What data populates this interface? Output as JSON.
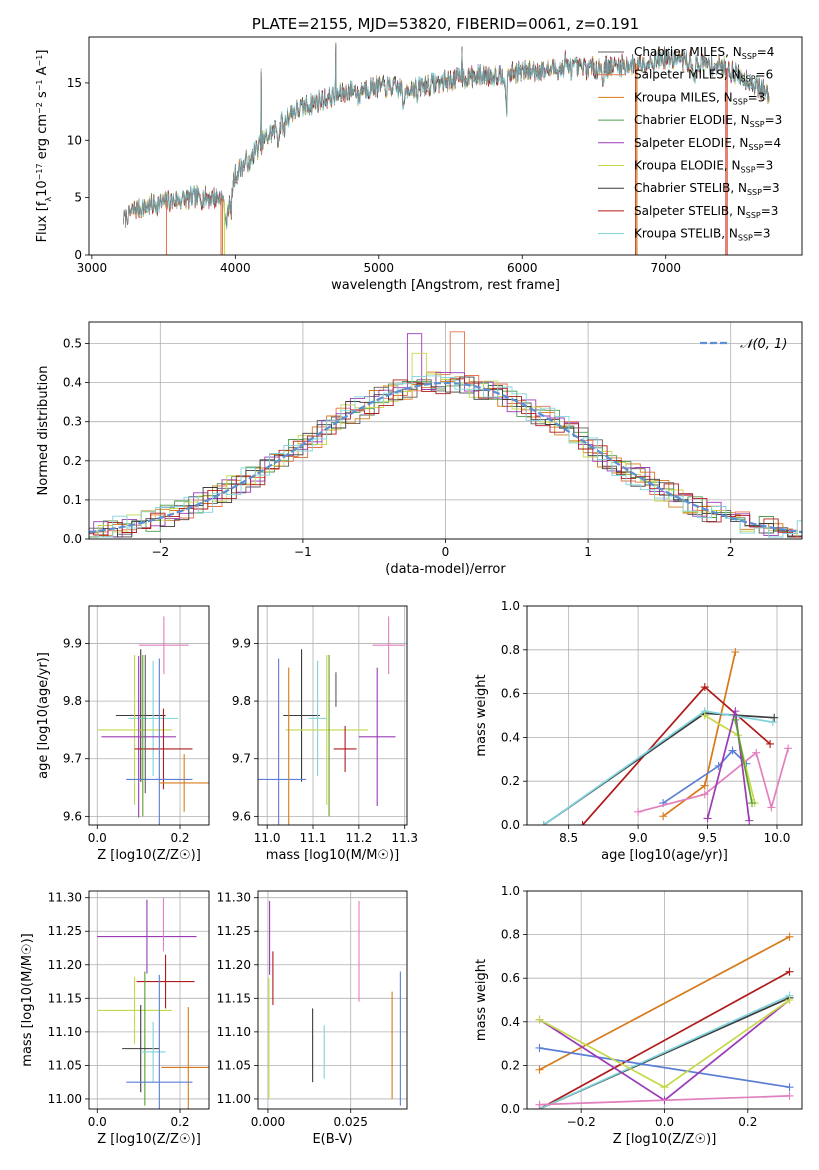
{
  "colors": {
    "chabrier_miles": "#5e5e5e",
    "salpeter_miles": "#e8724a",
    "kroupa_miles": "#d77a1b",
    "chabrier_elodie": "#4f9a4f",
    "salpeter_elodie": "#9a3bb5",
    "kroupa_elodie": "#c6d84a",
    "chabrier_stelib": "#3c3c3c",
    "salpeter_stelib": "#b01b1b",
    "kroupa_stelib": "#7fd3dc",
    "normal": "#5b8fd6",
    "extra_blue": "#5b7fd6",
    "extra_pink": "#e27fbf",
    "extra_green": "#5aa02c"
  },
  "chart_data": [
    {
      "id": "spectrum",
      "type": "line",
      "title": "PLATE=2155, MJD=53820, FIBERID=0061, z=0.191",
      "xlabel": "wavelength [Angstrom, rest frame]",
      "ylabel_html": "Flux [f<tspan baseline-shift='sub' font-size='8'>λ</tspan>10<tspan baseline-shift='super' font-size='8'>−17</tspan> erg cm<tspan baseline-shift='super' font-size='8'>−2</tspan> s<tspan baseline-shift='super' font-size='8'>−1</tspan> A<tspan baseline-shift='super' font-size='8'>−1</tspan>]",
      "xlim": [
        2980,
        7950
      ],
      "ylim": [
        0,
        19
      ],
      "xticks": [
        3000,
        4000,
        5000,
        6000,
        7000
      ],
      "yticks": [
        0,
        5,
        10,
        15
      ],
      "grid": false,
      "legend_position": "top-right",
      "legend": [
        {
          "key": "chabrier_miles",
          "label": "Chabrier MILES, N",
          "sub": "SSP",
          "suffix": "=4"
        },
        {
          "key": "salpeter_miles",
          "label": "Salpeter MILES, N",
          "sub": "SSP",
          "suffix": "=6"
        },
        {
          "key": "kroupa_miles",
          "label": "Kroupa MILES, N",
          "sub": "SSP",
          "suffix": "=3"
        },
        {
          "key": "chabrier_elodie",
          "label": "Chabrier ELODIE, N",
          "sub": "SSP",
          "suffix": "=3"
        },
        {
          "key": "salpeter_elodie",
          "label": "Salpeter ELODIE, N",
          "sub": "SSP",
          "suffix": "=4"
        },
        {
          "key": "kroupa_elodie",
          "label": "Kroupa ELODIE, N",
          "sub": "SSP",
          "suffix": "=3"
        },
        {
          "key": "chabrier_stelib",
          "label": "Chabrier STELIB, N",
          "sub": "SSP",
          "suffix": "=3"
        },
        {
          "key": "salpeter_stelib",
          "label": "Salpeter STELIB, N",
          "sub": "SSP",
          "suffix": "=3"
        },
        {
          "key": "kroupa_stelib",
          "label": "Kroupa STELIB, N",
          "sub": "SSP",
          "suffix": "=3"
        }
      ],
      "continuum": [
        [
          3220,
          3.2
        ],
        [
          3300,
          4.0
        ],
        [
          3500,
          4.6
        ],
        [
          3700,
          5.0
        ],
        [
          3900,
          5.0
        ],
        [
          3950,
          4.2
        ],
        [
          4000,
          7.0
        ],
        [
          4200,
          10.0
        ],
        [
          4400,
          12.5
        ],
        [
          4600,
          13.5
        ],
        [
          4800,
          14.3
        ],
        [
          5000,
          14.7
        ],
        [
          5200,
          14.5
        ],
        [
          5400,
          15.0
        ],
        [
          5600,
          15.5
        ],
        [
          5800,
          15.7
        ],
        [
          6000,
          16.0
        ],
        [
          6200,
          16.2
        ],
        [
          6400,
          16.3
        ],
        [
          6600,
          16.4
        ],
        [
          6800,
          16.6
        ],
        [
          7000,
          17.2
        ],
        [
          7200,
          16.8
        ],
        [
          7400,
          16.4
        ],
        [
          7600,
          15.0
        ],
        [
          7720,
          14.0
        ]
      ],
      "absorption": [
        [
          3934,
          2.0
        ],
        [
          3969,
          1.5
        ],
        [
          4102,
          1.2
        ],
        [
          4300,
          1.3
        ],
        [
          4340,
          1.0
        ],
        [
          4861,
          1.0
        ],
        [
          5175,
          2.0
        ],
        [
          5270,
          1.0
        ],
        [
          5890,
          3.0
        ],
        [
          6563,
          1.0
        ],
        [
          7200,
          2.0
        ]
      ],
      "spikes": [
        [
          4180,
          16.0
        ],
        [
          4700,
          18.3
        ],
        [
          5580,
          17.9
        ],
        [
          6300,
          17.6
        ]
      ],
      "dropouts": [
        {
          "key": "salpeter_miles",
          "x": 3520
        },
        {
          "key": "salpeter_miles",
          "x": 3900
        },
        {
          "key": "kroupa_miles",
          "x": 3910
        },
        {
          "key": "kroupa_elodie",
          "x": 3925
        },
        {
          "key": "salpeter_stelib",
          "x": 6790
        },
        {
          "key": "kroupa_elodie",
          "x": 6795
        },
        {
          "key": "salpeter_miles",
          "x": 6800
        },
        {
          "key": "salpeter_stelib",
          "x": 7420
        },
        {
          "key": "salpeter_miles",
          "x": 7430
        }
      ]
    },
    {
      "id": "residuals",
      "type": "bar",
      "xlabel": "(data-model)/error",
      "ylabel": "Normed distribution",
      "xlim": [
        -2.5,
        2.5
      ],
      "ylim": [
        0,
        0.555
      ],
      "xticks": [
        -2,
        -1,
        0,
        1,
        2
      ],
      "xticklabels": [
        "−2",
        "−1",
        "0",
        "1",
        "2"
      ],
      "yticks": [
        0,
        0.1,
        0.2,
        0.3,
        0.4,
        0.5
      ],
      "yticklabels": [
        "0.0",
        "0.1",
        "0.2",
        "0.3",
        "0.4",
        "0.5"
      ],
      "grid": true,
      "bin_width": 0.1,
      "normal_label": "𝒩(0, 1)",
      "legend_position": "top-right",
      "peak_bins": [
        {
          "key": "salpeter_elodie",
          "x": -0.3,
          "value": 0.525
        },
        {
          "key": "salpeter_miles",
          "x": 0.0,
          "value": 0.53
        },
        {
          "key": "kroupa_elodie",
          "x": -0.25,
          "value": 0.475
        }
      ]
    },
    {
      "id": "z-age",
      "type": "scatter",
      "xlabel": "Z [log10(Z/Z☉)]",
      "ylabel": "age [log10(age/yr)]",
      "xlim": [
        -0.02,
        0.27
      ],
      "ylim": [
        9.585,
        9.965
      ],
      "xticks": [
        0.0,
        0.2
      ],
      "xticklabels": [
        "0.0",
        "0.2"
      ],
      "yticks": [
        9.6,
        9.7,
        9.8,
        9.9
      ],
      "grid": true,
      "points": [
        {
          "key": "extra_pink",
          "x": 0.161,
          "y": 9.897,
          "xerr": 0.06,
          "yerr": 0.05
        },
        {
          "key": "chabrier_stelib",
          "x": 0.105,
          "y": 9.775,
          "xerr": 0.06,
          "yerr": 0.115
        },
        {
          "key": "kroupa_stelib",
          "x": 0.135,
          "y": 9.77,
          "xerr": 0.06,
          "yerr": 0.1
        },
        {
          "key": "kroupa_elodie",
          "x": 0.09,
          "y": 9.75,
          "xerr": 0.09,
          "yerr": 0.13
        },
        {
          "key": "salpeter_elodie",
          "x": 0.1,
          "y": 9.738,
          "xerr": 0.09,
          "yerr": 0.14
        },
        {
          "key": "salpeter_stelib",
          "x": 0.16,
          "y": 9.717,
          "xerr": 0.07,
          "yerr": 0.07
        },
        {
          "key": "extra_blue",
          "x": 0.15,
          "y": 9.664,
          "xerr": 0.08,
          "yerr": 0.21
        },
        {
          "key": "kroupa_miles",
          "x": 0.21,
          "y": 9.658,
          "xerr": 0.06,
          "yerr": 0.05
        },
        {
          "key": "extra_green",
          "x": 0.11,
          "y": 9.74,
          "xerr": 0.0,
          "yerr": 0.14
        },
        {
          "key": "chabrier_miles",
          "x": 0.116,
          "y": 9.76,
          "xerr": 0.0,
          "yerr": 0.12
        }
      ]
    },
    {
      "id": "mass-age",
      "type": "scatter",
      "xlabel": "mass [log10(M/M☉)]",
      "xlim": [
        10.98,
        11.305
      ],
      "ylim": [
        9.585,
        9.965
      ],
      "xticks": [
        11.0,
        11.1,
        11.2,
        11.3
      ],
      "xticklabels": [
        "11.0",
        "11.1",
        "11.2",
        "11.3"
      ],
      "yticks": [
        9.6,
        9.7,
        9.8,
        9.9
      ],
      "grid": true,
      "points": [
        {
          "key": "extra_pink",
          "x": 11.265,
          "y": 9.897,
          "xerr": 0.035,
          "yerr": 0.05
        },
        {
          "key": "chabrier_stelib",
          "x": 11.075,
          "y": 9.775,
          "xerr": 0.04,
          "yerr": 0.115
        },
        {
          "key": "kroupa_stelib",
          "x": 11.11,
          "y": 9.77,
          "xerr": 0.02,
          "yerr": 0.1
        },
        {
          "key": "kroupa_elodie",
          "x": 11.13,
          "y": 9.75,
          "xerr": 0.09,
          "yerr": 0.13
        },
        {
          "key": "salpeter_elodie",
          "x": 11.24,
          "y": 9.738,
          "xerr": 0.04,
          "yerr": 0.12
        },
        {
          "key": "salpeter_stelib",
          "x": 11.17,
          "y": 9.717,
          "xerr": 0.025,
          "yerr": 0.04
        },
        {
          "key": "extra_blue",
          "x": 11.025,
          "y": 9.664,
          "xerr": 0.06,
          "yerr": 0.21
        },
        {
          "key": "kroupa_miles",
          "x": 11.047,
          "y": 9.658,
          "xerr": 0.0,
          "yerr": 0.2
        },
        {
          "key": "extra_green",
          "x": 11.135,
          "y": 9.74,
          "xerr": 0.0,
          "yerr": 0.14
        },
        {
          "key": "chabrier_miles",
          "x": 11.15,
          "y": 9.82,
          "xerr": 0.0,
          "yerr": 0.03
        }
      ]
    },
    {
      "id": "age-weight",
      "type": "line",
      "xlabel": "age [log10(age/yr)]",
      "ylabel": "mass weight",
      "xlim": [
        8.2,
        10.18
      ],
      "ylim": [
        0,
        1.0
      ],
      "xticks": [
        8.5,
        9.0,
        9.5,
        10.0
      ],
      "xticklabels": [
        "8.5",
        "9.0",
        "9.5",
        "10.0"
      ],
      "yticks": [
        0.0,
        0.2,
        0.4,
        0.6,
        0.8,
        1.0
      ],
      "yticklabels": [
        "0.0",
        "0.2",
        "0.4",
        "0.6",
        "0.8",
        "1.0"
      ],
      "grid": true,
      "series": [
        {
          "key": "kroupa_miles",
          "x": [
            9.18,
            9.48,
            9.7
          ],
          "y": [
            0.04,
            0.18,
            0.79
          ]
        },
        {
          "key": "salpeter_stelib",
          "x": [
            8.6,
            9.48,
            9.95
          ],
          "y": [
            0.0,
            0.63,
            0.37
          ]
        },
        {
          "key": "chabrier_stelib",
          "x": [
            8.32,
            9.48,
            9.98
          ],
          "y": [
            0.0,
            0.51,
            0.49
          ]
        },
        {
          "key": "kroupa_stelib",
          "x": [
            8.32,
            9.48,
            9.97
          ],
          "y": [
            0.0,
            0.52,
            0.47
          ]
        },
        {
          "key": "extra_blue",
          "x": [
            9.18,
            9.58,
            9.68,
            9.78
          ],
          "y": [
            0.1,
            0.27,
            0.34,
            0.28
          ]
        },
        {
          "key": "extra_pink",
          "x": [
            9.0,
            9.48,
            9.85,
            9.96,
            10.08
          ],
          "y": [
            0.06,
            0.14,
            0.33,
            0.08,
            0.35
          ]
        },
        {
          "key": "kroupa_elodie",
          "x": [
            9.48,
            9.72,
            9.84
          ],
          "y": [
            0.5,
            0.41,
            0.1
          ]
        },
        {
          "key": "salpeter_elodie",
          "x": [
            9.5,
            9.7,
            9.8
          ],
          "y": [
            0.03,
            0.52,
            0.02
          ]
        },
        {
          "key": "extra_green",
          "x": [
            9.7,
            9.82
          ],
          "y": [
            0.48,
            0.1
          ]
        }
      ]
    },
    {
      "id": "z-mass",
      "type": "scatter",
      "xlabel": "Z [log10(Z/Z☉)]",
      "ylabel": "mass [log10(M/M☉)]",
      "xlim": [
        -0.02,
        0.27
      ],
      "ylim": [
        10.985,
        11.31
      ],
      "xticks": [
        0.0,
        0.2
      ],
      "xticklabels": [
        "0.0",
        "0.2"
      ],
      "yticks": [
        11.0,
        11.05,
        11.1,
        11.15,
        11.2,
        11.25,
        11.3
      ],
      "yticklabels": [
        "11.00",
        "11.05",
        "11.10",
        "11.15",
        "11.20",
        "11.25",
        "11.30"
      ],
      "grid": true,
      "points": [
        {
          "key": "salpeter_elodie",
          "x": 0.12,
          "y": 11.242,
          "xerr": 0.12,
          "yerr": 0.055
        },
        {
          "key": "extra_pink",
          "x": 0.16,
          "y": 11.26,
          "xerr": 0.0,
          "yerr": 0.04
        },
        {
          "key": "salpeter_stelib",
          "x": 0.165,
          "y": 11.175,
          "xerr": 0.07,
          "yerr": 0.04
        },
        {
          "key": "kroupa_elodie",
          "x": 0.09,
          "y": 11.132,
          "xerr": 0.09,
          "yerr": 0.05
        },
        {
          "key": "extra_green",
          "x": 0.115,
          "y": 11.09,
          "xerr": 0.0,
          "yerr": 0.1
        },
        {
          "key": "chabrier_stelib",
          "x": 0.105,
          "y": 11.075,
          "xerr": 0.045,
          "yerr": 0.065
        },
        {
          "key": "kroupa_stelib",
          "x": 0.135,
          "y": 11.07,
          "xerr": 0.03,
          "yerr": 0.045
        },
        {
          "key": "kroupa_miles",
          "x": 0.22,
          "y": 11.047,
          "xerr": 0.065,
          "yerr": 0.09
        },
        {
          "key": "extra_blue",
          "x": 0.15,
          "y": 11.025,
          "xerr": 0.08,
          "yerr": 0.16
        }
      ]
    },
    {
      "id": "ebv-mass",
      "type": "scatter",
      "xlabel": "E(B-V)",
      "xlim": [
        -0.003,
        0.042
      ],
      "ylim": [
        10.985,
        11.31
      ],
      "xticks": [
        0.0,
        0.025
      ],
      "xticklabels": [
        "0.000",
        "0.025"
      ],
      "yticks": [
        11.0,
        11.05,
        11.1,
        11.15,
        11.2,
        11.25,
        11.3
      ],
      "yticklabels": [
        "11.00",
        "11.05",
        "11.10",
        "11.15",
        "11.20",
        "11.25",
        "11.30"
      ],
      "grid": true,
      "points": [
        {
          "key": "salpeter_elodie",
          "x": 0.0005,
          "y": 11.24,
          "xerr": 0.0,
          "yerr": 0.055
        },
        {
          "key": "kroupa_elodie",
          "x": 0.0003,
          "y": 11.09,
          "xerr": 0.0,
          "yerr": 0.09
        },
        {
          "key": "salpeter_stelib",
          "x": 0.0015,
          "y": 11.18,
          "xerr": 0.0,
          "yerr": 0.04
        },
        {
          "key": "chabrier_stelib",
          "x": 0.0135,
          "y": 11.08,
          "xerr": 0.0,
          "yerr": 0.055
        },
        {
          "key": "kroupa_stelib",
          "x": 0.017,
          "y": 11.07,
          "xerr": 0.0,
          "yerr": 0.04
        },
        {
          "key": "extra_pink",
          "x": 0.0275,
          "y": 11.22,
          "xerr": 0.0,
          "yerr": 0.075
        },
        {
          "key": "kroupa_miles",
          "x": 0.0375,
          "y": 11.08,
          "xerr": 0.0,
          "yerr": 0.08
        },
        {
          "key": "extra_blue",
          "x": 0.04,
          "y": 11.09,
          "xerr": 0.0,
          "yerr": 0.1
        }
      ]
    },
    {
      "id": "z-weight",
      "type": "line",
      "xlabel": "Z [log10(Z/Z☉)]",
      "ylabel": "mass weight",
      "xlim": [
        -0.33,
        0.33
      ],
      "ylim": [
        0,
        1.0
      ],
      "xticks": [
        -0.2,
        0.0,
        0.2
      ],
      "xticklabels": [
        "−0.2",
        "0.0",
        "0.2"
      ],
      "yticks": [
        0.0,
        0.2,
        0.4,
        0.6,
        0.8,
        1.0
      ],
      "yticklabels": [
        "0.0",
        "0.2",
        "0.4",
        "0.6",
        "0.8",
        "1.0"
      ],
      "grid": true,
      "series": [
        {
          "key": "kroupa_miles",
          "x": [
            -0.3,
            0.3
          ],
          "y": [
            0.18,
            0.79
          ]
        },
        {
          "key": "salpeter_stelib",
          "x": [
            -0.3,
            0.3
          ],
          "y": [
            0.0,
            0.63
          ]
        },
        {
          "key": "chabrier_stelib",
          "x": [
            -0.3,
            0.3
          ],
          "y": [
            0.0,
            0.51
          ]
        },
        {
          "key": "kroupa_stelib",
          "x": [
            -0.3,
            0.3
          ],
          "y": [
            0.0,
            0.52
          ]
        },
        {
          "key": "extra_blue",
          "x": [
            -0.3,
            0.3
          ],
          "y": [
            0.28,
            0.1
          ]
        },
        {
          "key": "salpeter_elodie",
          "x": [
            -0.3,
            0.0,
            0.3
          ],
          "y": [
            0.41,
            0.04,
            0.5
          ]
        },
        {
          "key": "kroupa_elodie",
          "x": [
            -0.3,
            0.0,
            0.3
          ],
          "y": [
            0.41,
            0.1,
            0.5
          ]
        },
        {
          "key": "extra_pink",
          "x": [
            -0.3,
            0.3
          ],
          "y": [
            0.02,
            0.06
          ]
        }
      ]
    }
  ]
}
